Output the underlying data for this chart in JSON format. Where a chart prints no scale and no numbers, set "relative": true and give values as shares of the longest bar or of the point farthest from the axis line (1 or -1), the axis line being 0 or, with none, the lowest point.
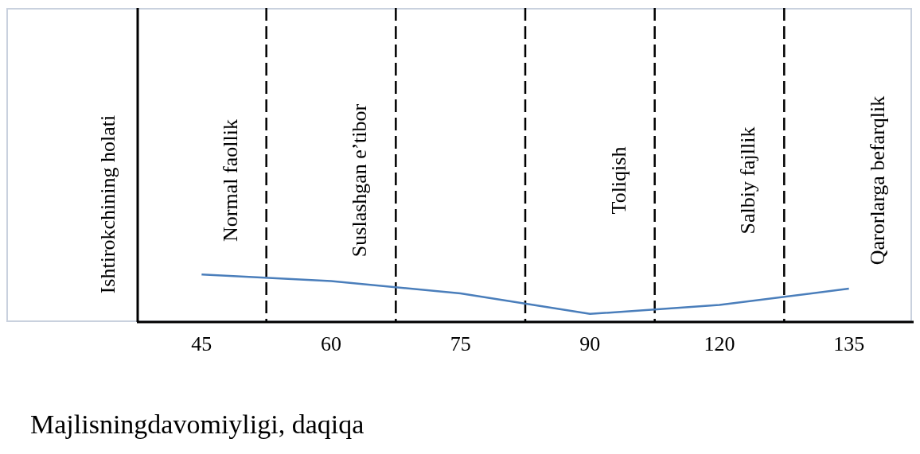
{
  "chart_data": {
    "type": "line",
    "relative": true,
    "xlabel": "Majlisningdavomiyligi, daqiqa",
    "ylabel": "Ishtirokchining holati",
    "categories": [
      "45",
      "60",
      "75",
      "90",
      "120",
      "135"
    ],
    "series": [
      {
        "color": "#4a7ebb",
        "values": [
          1,
          0.86,
          0.6,
          0.17,
          0.36,
          0.7
        ]
      }
    ],
    "annotations": [
      "Normal faollik",
      "Suslashgan e’tibor",
      "Toliqish",
      "Salbiy fajllik",
      "Qarorlarga befarqlik"
    ],
    "grid": "x",
    "marker": "none",
    "line_style": "solid"
  }
}
